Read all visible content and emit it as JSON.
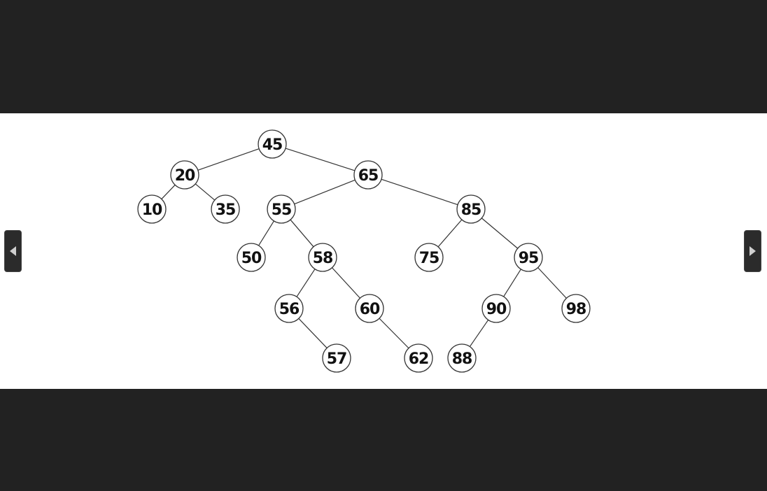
{
  "viewer": {
    "prev_icon": "chevron-left-icon",
    "next_icon": "chevron-right-icon"
  },
  "tree": {
    "root": "45",
    "nodes": [
      "45",
      "20",
      "65",
      "10",
      "35",
      "55",
      "85",
      "50",
      "58",
      "75",
      "95",
      "56",
      "60",
      "90",
      "98",
      "57",
      "62",
      "88"
    ],
    "edges": [
      [
        "45",
        "20"
      ],
      [
        "45",
        "65"
      ],
      [
        "20",
        "10"
      ],
      [
        "20",
        "35"
      ],
      [
        "65",
        "55"
      ],
      [
        "65",
        "85"
      ],
      [
        "55",
        "50"
      ],
      [
        "55",
        "58"
      ],
      [
        "58",
        "56"
      ],
      [
        "58",
        "60"
      ],
      [
        "56",
        "57"
      ],
      [
        "60",
        "62"
      ],
      [
        "85",
        "75"
      ],
      [
        "85",
        "95"
      ],
      [
        "95",
        "90"
      ],
      [
        "95",
        "98"
      ],
      [
        "90",
        "88"
      ]
    ]
  }
}
